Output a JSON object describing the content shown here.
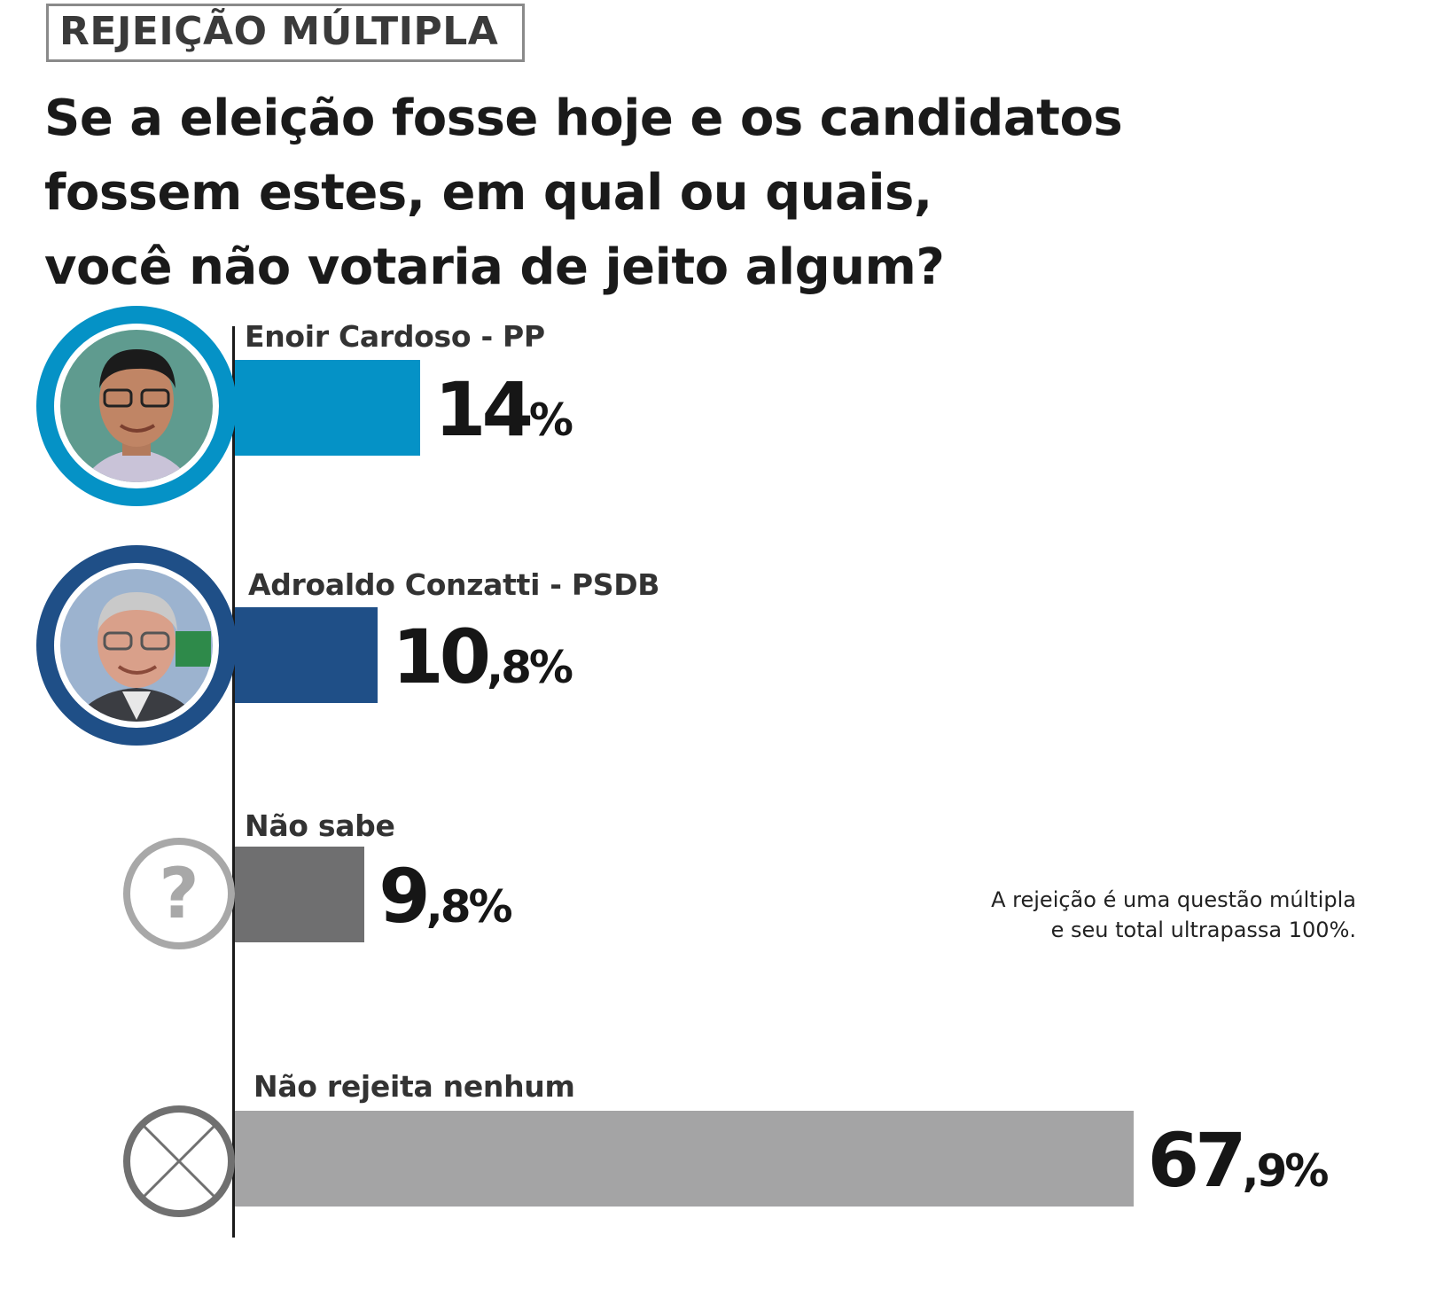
{
  "header": {
    "tag": "REJEIÇÃO MÚLTIPLA",
    "question_lines": [
      "Se a eleição fosse hoje e os candidatos",
      "fossem estes, em qual ou quais,",
      "você não votaria de jeito algum?"
    ]
  },
  "note_lines": [
    "A rejeição é uma questão múltipla",
    "e seu total ultrapassa 100%."
  ],
  "chart_data": {
    "type": "bar",
    "orientation": "horizontal",
    "categories": [
      "Enoir Cardoso - PP",
      "Adroaldo Conzatti - PSDB",
      "Não sabe",
      "Não rejeita nenhum"
    ],
    "values": [
      14,
      10.8,
      9.8,
      67.9
    ],
    "value_labels": [
      {
        "int": "14",
        "dec": "%"
      },
      {
        "int": "10",
        "dec": ",8%"
      },
      {
        "int": "9",
        "dec": ",8%"
      },
      {
        "int": "67",
        "dec": ",9%"
      }
    ],
    "colors": [
      "#0592c6",
      "#1f4f87",
      "#6f6f70",
      "#a4a4a5"
    ],
    "icons": [
      "candidate-photo",
      "candidate-photo",
      "question-icon",
      "cross-icon"
    ],
    "ring_colors": [
      "#0592c6",
      "#1f4f87",
      "#a8a8a8",
      "#707070"
    ],
    "units": "%"
  }
}
